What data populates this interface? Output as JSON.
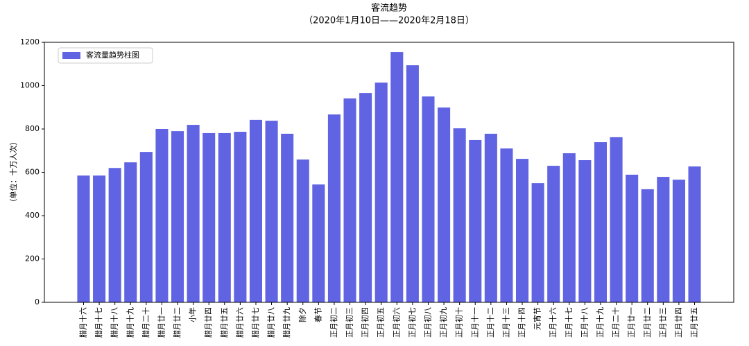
{
  "chart_data": {
    "type": "bar",
    "title": "客流趋势",
    "subtitle": "（2020年1月10日——2020年2月18日）",
    "y_label": "（单位：十万人次）",
    "categories": [
      "腊月十六",
      "腊月十七",
      "腊月十八",
      "腊月十九",
      "腊月二十",
      "腊月廿一",
      "腊月廿二",
      "小年",
      "腊月廿四",
      "腊月廿五",
      "腊月廿六",
      "腊月廿七",
      "腊月廿八",
      "腊月廿九",
      "除夕",
      "春节",
      "正月初二",
      "正月初三",
      "正月初四",
      "正月初五",
      "正月初六",
      "正月初七",
      "正月初八",
      "正月初九",
      "正月初十",
      "正月十一",
      "正月十二",
      "正月十三",
      "正月十四",
      "元宵节",
      "正月十六",
      "正月十七",
      "正月十八",
      "正月十九",
      "正月二十",
      "正月廿一",
      "正月廿二",
      "正月廿三",
      "正月廿四",
      "正月廿五"
    ],
    "series": [
      {
        "name": "客流量趋势柱图",
        "color": "#6064e3",
        "values": [
          585,
          585,
          620,
          646,
          694,
          800,
          790,
          819,
          781,
          781,
          787,
          842,
          838,
          778,
          659,
          544,
          867,
          941,
          966,
          1014,
          1155,
          1094,
          950,
          899,
          803,
          749,
          778,
          710,
          662,
          550,
          630,
          688,
          656,
          739,
          762,
          589,
          522,
          579,
          566,
          627
        ]
      }
    ],
    "ylim": [
      0,
      1200
    ],
    "yticks": [
      0,
      200,
      400,
      600,
      800,
      1000,
      1200
    ],
    "legend": "upper-left"
  }
}
